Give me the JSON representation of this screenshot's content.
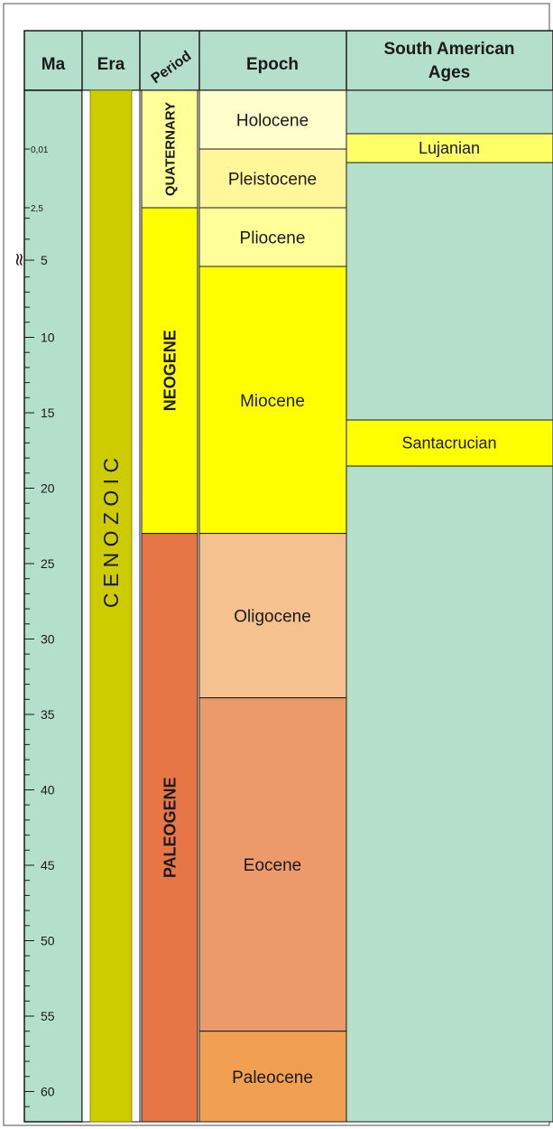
{
  "headers": {
    "ma": "Ma",
    "era": "Era",
    "period": "Period",
    "epoch": "Epoch",
    "ages_line1": "South American",
    "ages_line2": "Ages"
  },
  "era": {
    "label": "C E N O Z O I C",
    "color": "#cccc00"
  },
  "periods": [
    {
      "name": "QUATERNARY",
      "color": "#ffff99",
      "from_ma": 0,
      "to_ma": 2.5
    },
    {
      "name": "NEOGENE",
      "color": "#ffff00",
      "from_ma": 2.5,
      "to_ma": 23
    },
    {
      "name": "PALEOGENE",
      "color": "#e67645",
      "from_ma": 23,
      "to_ma": 66
    }
  ],
  "epochs": [
    {
      "name": "Holocene",
      "color": "#ffffcc",
      "from_ma": 0,
      "to_ma": 0.01
    },
    {
      "name": "Pleistocene",
      "color": "#fff799",
      "from_ma": 0.01,
      "to_ma": 2.5
    },
    {
      "name": "Pliocene",
      "color": "#ffff99",
      "from_ma": 2.5,
      "to_ma": 5.3
    },
    {
      "name": "Miocene",
      "color": "#ffff00",
      "from_ma": 5.3,
      "to_ma": 23
    },
    {
      "name": "Oligocene",
      "color": "#f5c28f",
      "from_ma": 23,
      "to_ma": 33.9
    },
    {
      "name": "Eocene",
      "color": "#ed9a6a",
      "from_ma": 33.9,
      "to_ma": 56
    },
    {
      "name": "Paleocene",
      "color": "#f0a050",
      "from_ma": 56,
      "to_ma": 66
    }
  ],
  "ages": [
    {
      "name": "Lujanian",
      "color": "#ffff66",
      "from_ma": 0.01,
      "to_ma": 0.8
    },
    {
      "name": "Santacrucian",
      "color": "#ffff00",
      "from_ma": 15.8,
      "to_ma": 19
    }
  ],
  "ages_background": "#b4dfca",
  "ma_column_background": "#b4dfca",
  "ma_ticks": {
    "major_top": [
      "0,01",
      "2,5"
    ],
    "major": [
      "5",
      "10",
      "15",
      "20",
      "25",
      "30",
      "35",
      "40",
      "45",
      "50",
      "55",
      "60"
    ]
  }
}
